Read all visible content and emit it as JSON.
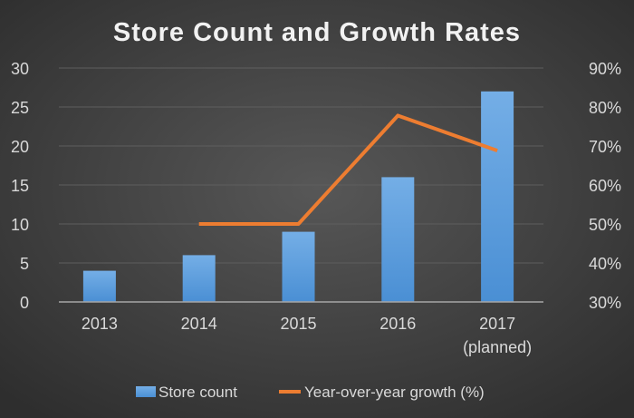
{
  "chart_data": {
    "type": "bar",
    "title": "Store Count and Growth Rates",
    "categories": [
      "2013",
      "2014",
      "2015",
      "2016",
      "2017"
    ],
    "category_sublabels": [
      "",
      "",
      "",
      "",
      "(planned)"
    ],
    "series": [
      {
        "name": "Store count",
        "type": "bar",
        "axis": "left",
        "values": [
          4,
          6,
          9,
          16,
          27
        ],
        "color": "#5b9bd5"
      },
      {
        "name": "Year-over-year growth (%)",
        "type": "line",
        "axis": "right",
        "values": [
          null,
          50,
          50,
          77.8,
          68.8
        ],
        "color": "#ed7d31"
      }
    ],
    "ylim": [
      0,
      30
    ],
    "yticks": [
      "0",
      "5",
      "10",
      "15",
      "20",
      "25",
      "30"
    ],
    "y2lim": [
      30,
      90
    ],
    "y2ticks": [
      "30%",
      "40%",
      "50%",
      "60%",
      "70%",
      "80%",
      "90%"
    ],
    "grid": true,
    "legend": "bottom"
  }
}
